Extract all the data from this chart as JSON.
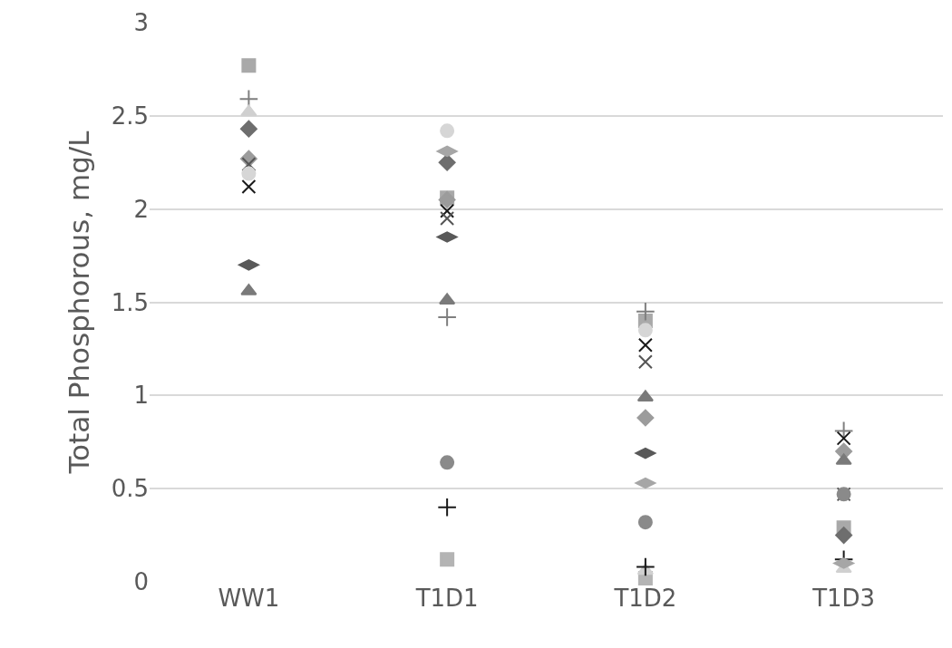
{
  "chart_data": {
    "type": "scatter",
    "ylabel": "Total Phosphorous, mg/L",
    "categories": [
      "WW1",
      "T1D1",
      "T1D2",
      "T1D3"
    ],
    "ylim": [
      0,
      3
    ],
    "yticks": [
      0,
      0.5,
      1,
      1.5,
      2,
      2.5,
      3
    ],
    "grid": "y",
    "series": [
      {
        "marker": "square",
        "color": "#a9a9a9",
        "values": [
          2.77,
          2.06,
          1.4,
          0.29
        ]
      },
      {
        "marker": "square",
        "color": "#b4b4b4",
        "values": [
          null,
          0.12,
          0.02,
          null
        ]
      },
      {
        "marker": "cross",
        "color": "#7f7f7f",
        "values": [
          2.59,
          1.42,
          1.45,
          0.81
        ]
      },
      {
        "marker": "triangle",
        "color": "#d0d0d0",
        "values": [
          2.52,
          null,
          0.06,
          0.07
        ]
      },
      {
        "marker": "diamond",
        "color": "#6e6e6e",
        "values": [
          2.43,
          2.25,
          null,
          0.25
        ]
      },
      {
        "marker": "diamond",
        "color": "#9c9c9c",
        "values": [
          2.27,
          2.05,
          0.88,
          0.7
        ]
      },
      {
        "marker": "x",
        "color": "#1a1a1a",
        "values": [
          2.12,
          1.99,
          1.27,
          0.77
        ]
      },
      {
        "marker": "x",
        "color": "#555555",
        "values": [
          2.24,
          1.95,
          1.18,
          0.47
        ]
      },
      {
        "marker": "circle",
        "color": "#d6d6d6",
        "values": [
          2.19,
          2.42,
          1.35,
          null
        ]
      },
      {
        "color": "#595959",
        "values": [
          1.7,
          1.85,
          0.69,
          null
        ]
      },
      {
        "marker": "triangle",
        "color": "#7a7a7a",
        "values": [
          1.56,
          1.51,
          0.99,
          0.65
        ]
      },
      {
        "marker": "circle",
        "color": "#8a8a8a",
        "values": [
          null,
          0.64,
          0.32,
          0.47
        ]
      },
      {
        "marker": "cross",
        "color": "#1a1a1a",
        "values": [
          null,
          0.4,
          0.08,
          0.12
        ]
      },
      {
        "color": "#a6a6a6",
        "values": [
          null,
          2.31,
          0.53,
          0.1
        ]
      }
    ]
  }
}
